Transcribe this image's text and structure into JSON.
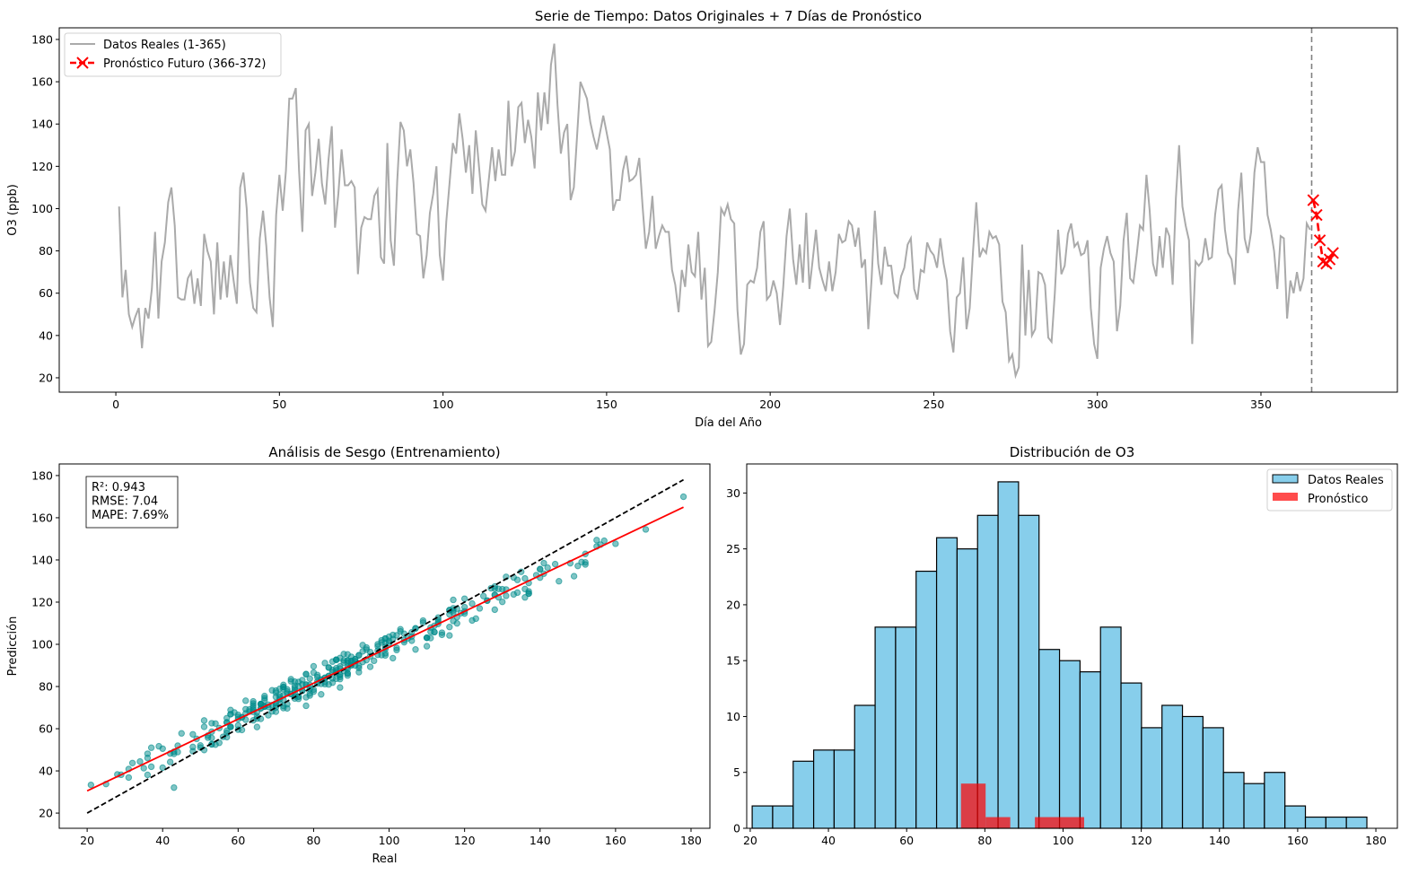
{
  "chart_data": [
    {
      "type": "line",
      "title": "Serie de Tiempo: Datos Originales + 7 Días de Pronóstico",
      "xlabel": "Día del Año",
      "ylabel": "O3 (ppb)",
      "xlim": [
        -17.3,
        391.7
      ],
      "ylim": [
        13.2,
        185.5
      ],
      "xticks": [
        0,
        50,
        100,
        150,
        200,
        250,
        300,
        350
      ],
      "yticks": [
        20,
        40,
        60,
        80,
        100,
        120,
        140,
        160,
        180
      ],
      "legend_position": "upper-left",
      "vline": {
        "x": 365.5,
        "color": "#808080",
        "style": "dashed"
      },
      "series": [
        {
          "name": "Datos Reales (1-365)",
          "color": "#aaaaaa",
          "x_start": 1,
          "values": [
            101,
            58,
            71,
            50,
            44,
            49,
            53,
            34,
            53,
            48,
            62,
            89,
            48,
            75,
            84,
            103,
            110,
            92,
            58,
            57,
            57,
            67,
            70,
            55,
            67,
            54,
            88,
            80,
            75,
            50,
            84,
            57,
            75,
            58,
            78,
            66,
            55,
            110,
            117,
            100,
            65,
            53,
            51,
            86,
            99,
            82,
            58,
            44,
            97,
            116,
            99,
            118,
            152,
            152,
            157,
            118,
            89,
            137,
            140,
            106,
            117,
            133,
            112,
            102,
            123,
            139,
            91,
            107,
            128,
            111,
            111,
            113,
            110,
            69,
            91,
            96,
            95,
            95,
            106,
            109,
            77,
            74,
            131,
            85,
            73,
            113,
            141,
            137,
            120,
            128,
            112,
            88,
            87,
            67,
            78,
            98,
            107,
            120,
            78,
            66,
            94,
            112,
            131,
            126,
            145,
            133,
            117,
            130,
            107,
            137,
            120,
            102,
            99,
            114,
            129,
            113,
            128,
            116,
            116,
            151,
            120,
            127,
            148,
            150,
            131,
            142,
            134,
            119,
            155,
            137,
            155,
            140,
            168,
            178,
            149,
            126,
            136,
            140,
            104,
            110,
            135,
            160,
            156,
            152,
            141,
            134,
            128,
            136,
            144,
            136,
            128,
            99,
            104,
            104,
            118,
            125,
            113,
            114,
            116,
            124,
            101,
            81,
            89,
            106,
            81,
            87,
            92,
            89,
            89,
            71,
            64,
            51,
            71,
            63,
            83,
            70,
            68,
            89,
            57,
            72,
            35,
            37,
            52,
            70,
            100,
            97,
            102,
            95,
            93,
            52,
            31,
            36,
            64,
            66,
            65,
            72,
            89,
            94,
            57,
            59,
            66,
            60,
            45,
            63,
            87,
            100,
            76,
            64,
            83,
            65,
            98,
            62,
            76,
            90,
            72,
            66,
            61,
            75,
            61,
            70,
            88,
            84,
            85,
            94,
            92,
            82,
            91,
            72,
            76,
            43,
            67,
            99,
            74,
            64,
            82,
            73,
            73,
            60,
            58,
            68,
            72,
            83,
            86,
            62,
            57,
            71,
            70,
            84,
            80,
            78,
            72,
            86,
            74,
            66,
            42,
            32,
            58,
            60,
            77,
            43,
            53,
            80,
            103,
            77,
            81,
            79,
            89,
            86,
            87,
            83,
            56,
            51,
            28,
            31,
            21,
            25,
            83,
            40,
            71,
            40,
            43,
            70,
            69,
            64,
            39,
            37,
            60,
            90,
            69,
            73,
            88,
            93,
            82,
            84,
            78,
            79,
            85,
            53,
            36,
            29,
            72,
            81,
            87,
            79,
            75,
            42,
            54,
            85,
            98,
            67,
            65,
            78,
            92,
            90,
            116,
            99,
            74,
            68,
            87,
            72,
            91,
            87,
            64,
            105,
            130,
            101,
            92,
            85,
            36,
            75,
            73,
            75,
            86,
            76,
            77,
            97,
            109,
            111,
            90,
            79,
            76,
            64,
            99,
            117,
            86,
            79,
            89,
            117,
            129,
            122,
            122,
            97,
            90,
            80,
            62,
            87,
            86,
            48,
            66,
            60,
            70,
            61,
            67,
            93,
            90
          ]
        },
        {
          "name": "Pronóstico Futuro (366-372)",
          "color": "#ff0000",
          "x_start": 366,
          "values": [
            104,
            97,
            85,
            75,
            74,
            76,
            79
          ]
        }
      ]
    },
    {
      "type": "scatter",
      "title": "Análisis de Sesgo (Entrenamiento)",
      "xlabel": "Real",
      "ylabel": "Predicción",
      "xlim": [
        12.6,
        185
      ],
      "ylim": [
        12.8,
        185.5
      ],
      "xticks": [
        20,
        40,
        60,
        80,
        100,
        120,
        140,
        160,
        180
      ],
      "yticks": [
        20,
        40,
        60,
        80,
        100,
        120,
        140,
        160,
        180
      ],
      "point_color": "#008b8b",
      "real_source": "series 0 values",
      "fit_line": {
        "slope": 0.851,
        "intercept": 13.5,
        "color": "#ff0000"
      },
      "identity_line": {
        "from": 20,
        "to": 178,
        "color": "#000000",
        "style": "dashed"
      },
      "residuals": [
        3,
        -2,
        5,
        -4,
        1,
        0,
        -6,
        2,
        4,
        -3,
        7,
        -1,
        -5,
        2,
        0,
        6,
        -8,
        3,
        -2,
        1,
        -4,
        5,
        2,
        -7,
        0,
        3,
        -1,
        8,
        -3,
        -5,
        4,
        1,
        -2,
        6,
        -9,
        2,
        0,
        -4,
        3,
        5,
        -1,
        -6,
        7,
        2,
        -3,
        0,
        4,
        -2,
        1,
        -8,
        5,
        3,
        -4,
        0,
        2,
        -1,
        6,
        -5,
        3,
        -2,
        8,
        -3,
        0,
        4,
        -6,
        1,
        2,
        -7,
        5,
        0,
        -2,
        3,
        -4,
        6,
        1,
        -3,
        2,
        -5,
        0,
        4,
        -1,
        7,
        -2,
        -4,
        3,
        0,
        5,
        -6,
        2,
        1,
        -3,
        4,
        -8,
        0,
        6,
        -2,
        3,
        -1,
        -5,
        2,
        4,
        -3,
        1,
        0,
        -7,
        5,
        2,
        -4,
        3,
        -1,
        6,
        -2,
        0,
        -5,
        3,
        1,
        -6,
        4,
        2,
        -3,
        0,
        5,
        -1,
        -4,
        7,
        2,
        -3,
        0,
        1,
        -6,
        4,
        3,
        -2,
        5,
        -8,
        0,
        2,
        -1,
        3,
        -4,
        6,
        -2,
        1,
        -5,
        0,
        3,
        4,
        -3,
        2,
        -7,
        1,
        5,
        -1,
        0,
        -4,
        3,
        2,
        -6,
        4,
        -2,
        5,
        0,
        -3,
        2,
        -1,
        6,
        -5,
        3,
        0,
        -2,
        4,
        -7,
        1,
        2,
        -3,
        5,
        0,
        -4,
        3,
        1,
        -2,
        6,
        -1,
        -5,
        2,
        4,
        -3,
        0,
        7,
        -2,
        1,
        -6,
        3,
        0,
        -4,
        5,
        2,
        -1,
        -3,
        4,
        0,
        -5,
        6,
        1,
        -2,
        3,
        -4,
        2,
        0,
        -8,
        5,
        1,
        -3,
        4,
        -1,
        2,
        -6,
        3,
        0,
        -2,
        7,
        -4,
        1,
        5,
        -3,
        0,
        2,
        -5,
        4,
        -1,
        3,
        -2,
        6,
        0,
        -7,
        2,
        1,
        -3,
        4,
        -1,
        5,
        -2,
        0,
        3,
        -6,
        2,
        -1,
        4,
        -4,
        1,
        6,
        -3,
        0,
        2,
        -5,
        3,
        -2,
        1,
        4,
        -18,
        0,
        -3,
        5,
        -1,
        2,
        -4,
        3,
        6,
        -2,
        0,
        -5,
        4,
        1,
        -3,
        2,
        -1,
        7,
        -6,
        0,
        3,
        -2,
        4,
        -4,
        1,
        5,
        -3,
        0,
        2,
        -1,
        -6,
        3,
        4,
        -2,
        0,
        1,
        -5,
        6,
        -3,
        2,
        0,
        -4,
        3,
        1,
        -2,
        5,
        -1,
        -7,
        2,
        4,
        0,
        -3,
        6,
        -2,
        1,
        -4,
        3,
        0,
        -5,
        2,
        4,
        -1,
        -3,
        5,
        0,
        2,
        -6,
        3,
        -2,
        4,
        1,
        -4,
        0,
        6,
        -3,
        2,
        -1,
        5,
        -5,
        0,
        3,
        2,
        -4,
        1,
        -2,
        6,
        0,
        -3,
        4,
        -1,
        2,
        -6,
        3,
        0,
        5,
        -2,
        -4,
        1,
        3,
        -5,
        2,
        -3,
        0,
        4,
        -1,
        2
      ],
      "stats": [
        "R²: 0.943",
        "RMSE: 7.04",
        "MAPE: 7.69%"
      ]
    },
    {
      "type": "bar",
      "title": "Distribución de O3",
      "xlim": [
        19.1,
        185.5
      ],
      "ylim": [
        0,
        32.6
      ],
      "xticks": [
        20,
        40,
        60,
        80,
        100,
        120,
        140,
        160,
        180
      ],
      "yticks": [
        0,
        5,
        10,
        15,
        20,
        25,
        30
      ],
      "legend_position": "upper-right",
      "series": [
        {
          "name": "Datos Reales",
          "color": "#87ceeb",
          "bin_start": 20.5,
          "bin_width": 5.24,
          "counts": [
            2,
            2,
            6,
            7,
            7,
            11,
            18,
            18,
            23,
            26,
            25,
            28,
            31,
            28,
            16,
            15,
            14,
            18,
            13,
            9,
            11,
            10,
            9,
            5,
            4,
            5,
            2,
            1,
            1,
            1
          ]
        },
        {
          "name": "Pronóstico",
          "color": "#ff0000",
          "bin_start": 73.9,
          "bin_width": 6.3,
          "counts": [
            4,
            1,
            0,
            1,
            1
          ]
        }
      ]
    }
  ]
}
